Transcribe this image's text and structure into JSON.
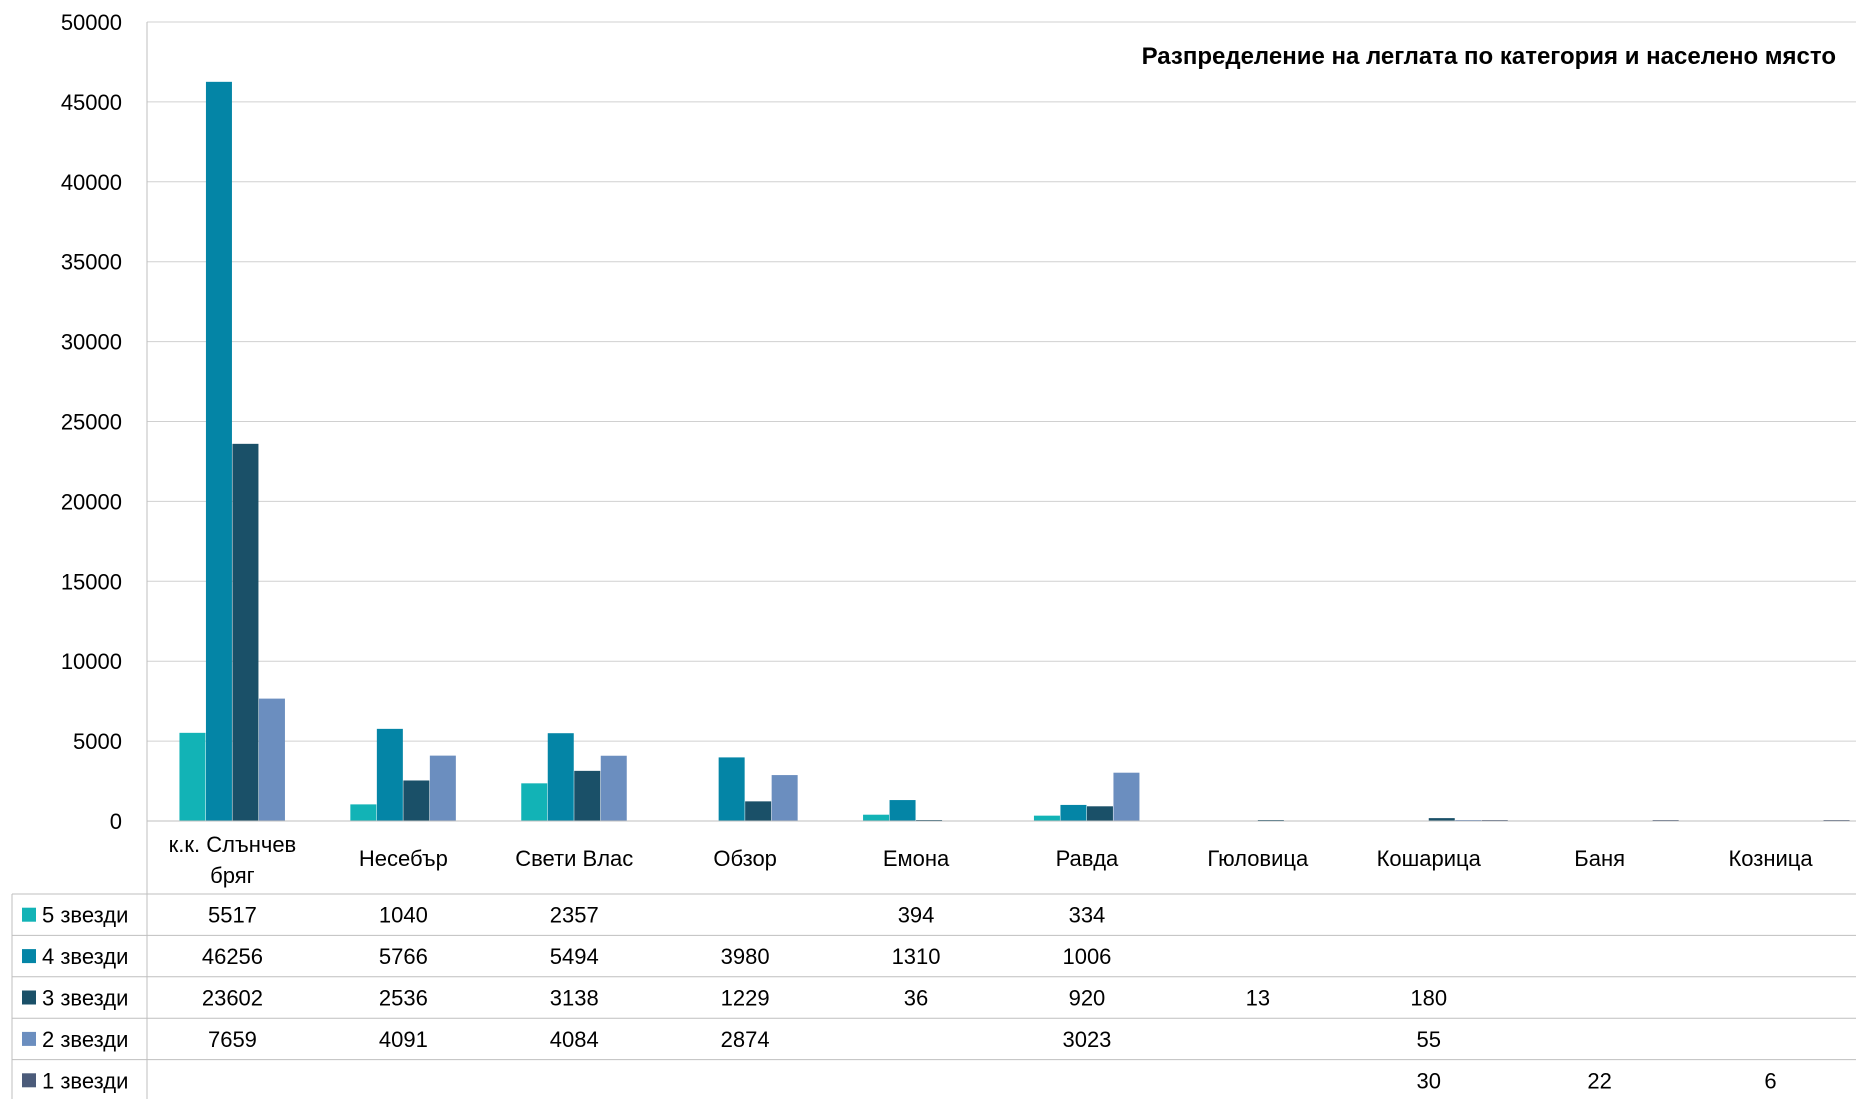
{
  "chart_data": {
    "type": "bar",
    "title": "Разпределение на леглата по категория и населено място",
    "xlabel": "",
    "ylabel": "",
    "ylim": [
      0,
      50000
    ],
    "y_ticks": [
      "0",
      "5000",
      "10000",
      "15000",
      "20000",
      "25000",
      "30000",
      "35000",
      "40000",
      "45000",
      "50000"
    ],
    "grid": true,
    "legend": "data-table",
    "categories": [
      [
        "к.к. Слънчев",
        "бряг"
      ],
      [
        "Несебър"
      ],
      [
        "Свети Влас"
      ],
      [
        "Обзор"
      ],
      [
        "Емона"
      ],
      [
        "Равда"
      ],
      [
        "Гюловица"
      ],
      [
        "Кошарица"
      ],
      [
        "Баня"
      ],
      [
        "Козница"
      ]
    ],
    "series": [
      {
        "name": "5 звезди",
        "color": "#12b3b6",
        "values": [
          5517,
          1040,
          2357,
          null,
          394,
          334,
          null,
          null,
          null,
          null
        ]
      },
      {
        "name": "4 звезди",
        "color": "#0485a6",
        "values": [
          46256,
          5766,
          5494,
          3980,
          1310,
          1006,
          null,
          null,
          null,
          null
        ]
      },
      {
        "name": "3 звезди",
        "color": "#1a5068",
        "values": [
          23602,
          2536,
          3138,
          1229,
          36,
          920,
          13,
          180,
          null,
          null
        ]
      },
      {
        "name": "2 звезди",
        "color": "#6b8ebf",
        "values": [
          7659,
          4091,
          4084,
          2874,
          null,
          3023,
          null,
          55,
          null,
          null
        ]
      },
      {
        "name": "1 звезди",
        "color": "#4b5b7a",
        "values": [
          null,
          null,
          null,
          null,
          null,
          null,
          null,
          30,
          22,
          6
        ]
      }
    ]
  }
}
